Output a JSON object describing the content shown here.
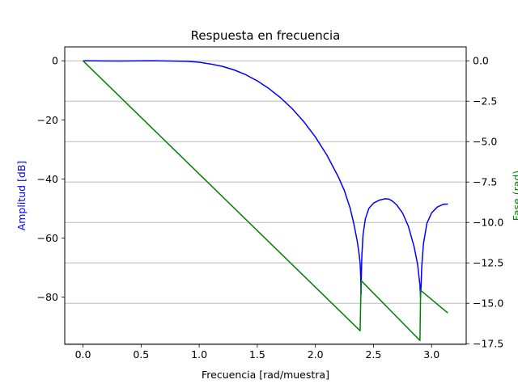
{
  "chart_data": {
    "type": "line",
    "title": "Respuesta en frecuencia",
    "xlabel": "Frecuencia [rad/muestra]",
    "ylabel_left": "Amplitud [dB]",
    "ylabel_right": "Fase (rad)",
    "xlim": [
      -0.157,
      3.298
    ],
    "ylim_left": [
      -96.0,
      4.7
    ],
    "ylim_right": [
      -17.54,
      0.86
    ],
    "x_ticks": [
      0.0,
      0.5,
      1.0,
      1.5,
      2.0,
      2.5,
      3.0
    ],
    "x_tick_labels": [
      "0.0",
      "0.5",
      "1.0",
      "1.5",
      "2.0",
      "2.5",
      "3.0"
    ],
    "y_left_ticks": [
      0,
      -20,
      -40,
      -60,
      -80
    ],
    "y_left_tick_labels": [
      "0",
      "−20",
      "−40",
      "−60",
      "−80"
    ],
    "y_right_ticks": [
      0.0,
      -2.5,
      -5.0,
      -7.5,
      -10.0,
      -12.5,
      -15.0,
      -17.5
    ],
    "y_right_tick_labels": [
      "0.0",
      "−2.5",
      "−5.0",
      "−7.5",
      "−10.0",
      "−12.5",
      "−15.0",
      "−17.5"
    ],
    "grid": "horizontal (right axis ticks)",
    "colors": {
      "amplitude": "#0000ff",
      "phase": "#008000",
      "grid": "#b0b0b0"
    },
    "series": [
      {
        "axis": "left",
        "x": [
          0.0,
          0.3,
          0.6,
          0.9,
          1.0,
          1.1,
          1.2,
          1.3,
          1.4,
          1.5,
          1.6,
          1.7,
          1.8,
          1.9,
          2.0,
          2.1,
          2.2,
          2.25,
          2.3,
          2.33,
          2.36,
          2.375,
          2.385,
          2.39,
          2.393,
          2.396,
          2.4,
          2.41,
          2.43,
          2.46,
          2.5,
          2.55,
          2.6,
          2.63,
          2.66,
          2.7,
          2.75,
          2.8,
          2.85,
          2.88,
          2.9,
          2.905,
          2.91,
          2.915,
          2.93,
          2.96,
          3.0,
          3.05,
          3.1,
          3.14
        ],
        "y": [
          0.0,
          -0.1,
          0.0,
          -0.2,
          -0.5,
          -1.1,
          -1.9,
          -3.1,
          -4.7,
          -6.8,
          -9.4,
          -12.5,
          -16.2,
          -20.6,
          -25.8,
          -32.0,
          -39.5,
          -44.0,
          -50.0,
          -55.0,
          -61.0,
          -65.0,
          -68.5,
          -73.0,
          -79.0,
          -72.0,
          -66.0,
          -59.0,
          -53.5,
          -50.0,
          -48.2,
          -47.2,
          -46.7,
          -46.8,
          -47.4,
          -48.8,
          -51.5,
          -56.0,
          -63.0,
          -69.0,
          -76.0,
          -80.0,
          -76.0,
          -70.0,
          -62.0,
          -55.0,
          -51.5,
          -49.5,
          -48.6,
          -48.5
        ]
      },
      {
        "axis": "right",
        "x": [
          0.0,
          2.385,
          2.394,
          2.9,
          2.906,
          3.14
        ],
        "y": [
          0.0,
          -16.7,
          -13.6,
          -17.3,
          -14.2,
          -15.6
        ]
      }
    ]
  }
}
